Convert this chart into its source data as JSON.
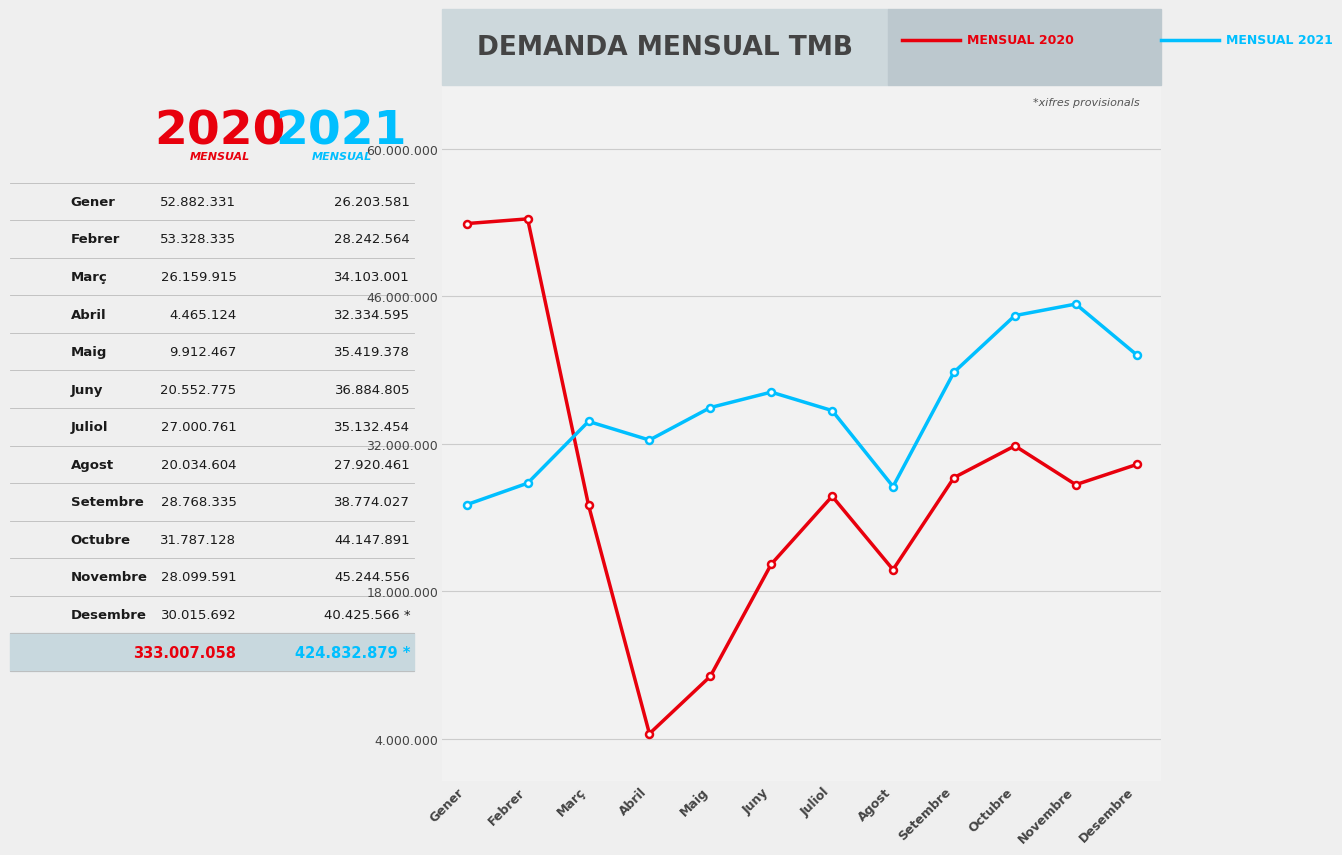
{
  "months": [
    "Gener",
    "Febrer",
    "Març",
    "Abril",
    "Maig",
    "Juny",
    "Juliol",
    "Agost",
    "Setembre",
    "Octubre",
    "Novembre",
    "Desembre"
  ],
  "data_2020": [
    52882331,
    53328335,
    26159915,
    4465124,
    9912467,
    20552775,
    27000761,
    20034604,
    28768335,
    31787128,
    28099591,
    30015692
  ],
  "data_2021": [
    26203581,
    28242564,
    34103001,
    32334595,
    35419378,
    36884805,
    35132454,
    27920461,
    38774027,
    44147891,
    45244556,
    40425566
  ],
  "labels_2020": [
    "52.882.331",
    "53.328.335",
    "26.159.915",
    "4.465.124",
    "9.912.467",
    "20.552.775",
    "27.000.761",
    "20.034.604",
    "28.768.335",
    "31.787.128",
    "28.099.591",
    "30.015.692"
  ],
  "labels_2021": [
    "26.203.581",
    "28.242.564",
    "34.103.001",
    "32.334.595",
    "35.419.378",
    "36.884.805",
    "35.132.454",
    "27.920.461",
    "38.774.027",
    "44.147.891",
    "45.244.556",
    "40.425.566 *"
  ],
  "total_2020": "333.007.058",
  "total_2021": "424.832.879 *",
  "color_2020": "#E8000D",
  "color_2021": "#00BFFF",
  "bg_color": "#EFEFEF",
  "chart_bg": "#F2F2F2",
  "grid_color": "#CCCCCC",
  "yticks": [
    4000000,
    18000000,
    32000000,
    46000000,
    60000000
  ],
  "ytick_labels": [
    "4.000.000",
    "18.000.000",
    "32.000.000",
    "46.000.000",
    "60.000.000"
  ],
  "chart_title": "DEMANDA MENSUAL TMB",
  "legend_2020": "MENSUAL 2020",
  "legend_2021": "MENSUAL 2021",
  "note": "*xifres provisionals",
  "header_bg_color": "#CDD8DC",
  "header_bg_color_right": "#BCC8CE",
  "total_row_bg": "#C8D8DE",
  "line_color": "#BBBBBB",
  "text_color": "#1a1a1a",
  "title_color": "#444444"
}
